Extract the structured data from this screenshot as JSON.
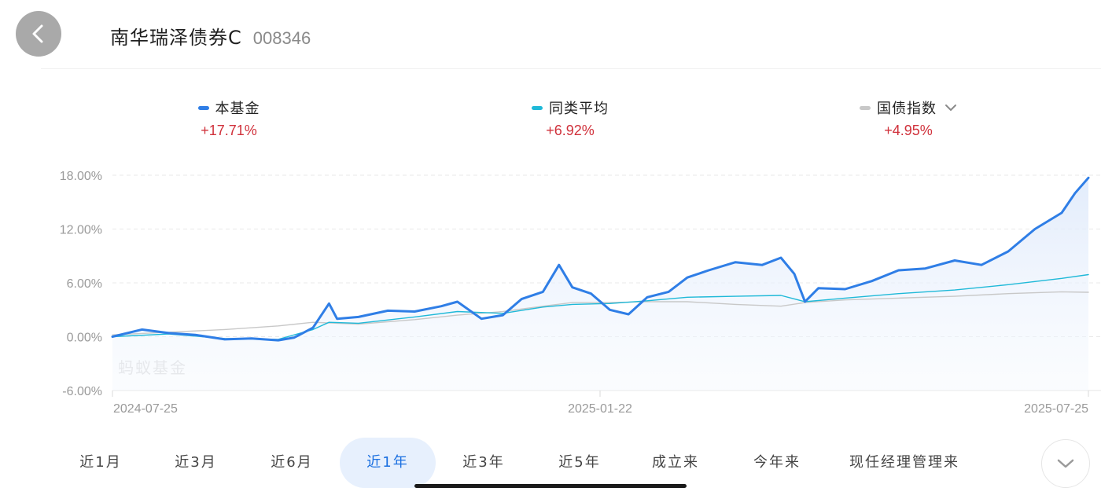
{
  "header": {
    "fund_name": "南华瑞泽债券C",
    "fund_code": "008346"
  },
  "legend": [
    {
      "label": "本基金",
      "value": "+17.71%",
      "color": "#2f7ee6"
    },
    {
      "label": "同类平均",
      "value": "+6.92%",
      "color": "#1fb9d8"
    },
    {
      "label": "国债指数",
      "value": "+4.95%",
      "color": "#c8c8c8"
    }
  ],
  "watermark": "蚂蚁基金",
  "chart_data": {
    "type": "line",
    "title": "",
    "xlabel": "",
    "ylabel": "",
    "ylim": [
      -6,
      18
    ],
    "y_ticks": [
      "18.00%",
      "12.00%",
      "6.00%",
      "0.00%",
      "-6.00%"
    ],
    "x_tick_labels": [
      "2024-07-25",
      "2025-01-22",
      "2025-07-25"
    ],
    "x_range": [
      "2024-07-25",
      "2025-07-25"
    ],
    "grid": true,
    "legend_position": "top",
    "series": [
      {
        "name": "本基金",
        "color": "#2f7ee6",
        "points": [
          [
            "2024-07-25",
            0.0
          ],
          [
            "2024-08-05",
            0.8
          ],
          [
            "2024-08-15",
            0.4
          ],
          [
            "2024-08-25",
            0.2
          ],
          [
            "2024-09-05",
            -0.3
          ],
          [
            "2024-09-15",
            -0.2
          ],
          [
            "2024-09-25",
            -0.4
          ],
          [
            "2024-10-01",
            -0.1
          ],
          [
            "2024-10-08",
            1.0
          ],
          [
            "2024-10-14",
            3.7
          ],
          [
            "2024-10-17",
            2.0
          ],
          [
            "2024-10-25",
            2.2
          ],
          [
            "2024-11-05",
            2.9
          ],
          [
            "2024-11-15",
            2.8
          ],
          [
            "2024-11-25",
            3.4
          ],
          [
            "2024-12-01",
            3.9
          ],
          [
            "2024-12-10",
            2.0
          ],
          [
            "2024-12-18",
            2.4
          ],
          [
            "2024-12-25",
            4.2
          ],
          [
            "2025-01-02",
            5.0
          ],
          [
            "2025-01-08",
            8.0
          ],
          [
            "2025-01-13",
            5.5
          ],
          [
            "2025-01-20",
            4.8
          ],
          [
            "2025-01-27",
            3.0
          ],
          [
            "2025-02-03",
            2.5
          ],
          [
            "2025-02-10",
            4.4
          ],
          [
            "2025-02-18",
            5.0
          ],
          [
            "2025-02-25",
            6.6
          ],
          [
            "2025-03-05",
            7.4
          ],
          [
            "2025-03-15",
            8.3
          ],
          [
            "2025-03-25",
            8.0
          ],
          [
            "2025-04-01",
            8.8
          ],
          [
            "2025-04-06",
            7.0
          ],
          [
            "2025-04-10",
            3.9
          ],
          [
            "2025-04-15",
            5.4
          ],
          [
            "2025-04-25",
            5.3
          ],
          [
            "2025-05-05",
            6.2
          ],
          [
            "2025-05-15",
            7.4
          ],
          [
            "2025-05-25",
            7.6
          ],
          [
            "2025-06-05",
            8.5
          ],
          [
            "2025-06-15",
            8.0
          ],
          [
            "2025-06-25",
            9.5
          ],
          [
            "2025-07-05",
            12.0
          ],
          [
            "2025-07-15",
            13.8
          ],
          [
            "2025-07-20",
            16.0
          ],
          [
            "2025-07-25",
            17.71
          ]
        ]
      },
      {
        "name": "同类平均",
        "color": "#1fb9d8",
        "points": [
          [
            "2024-07-25",
            0.0
          ],
          [
            "2024-08-15",
            0.3
          ],
          [
            "2024-09-05",
            -0.2
          ],
          [
            "2024-09-25",
            -0.3
          ],
          [
            "2024-10-08",
            0.8
          ],
          [
            "2024-10-14",
            1.6
          ],
          [
            "2024-10-25",
            1.5
          ],
          [
            "2024-11-15",
            2.2
          ],
          [
            "2024-12-01",
            2.8
          ],
          [
            "2024-12-18",
            2.6
          ],
          [
            "2025-01-02",
            3.3
          ],
          [
            "2025-01-13",
            3.6
          ],
          [
            "2025-01-27",
            3.7
          ],
          [
            "2025-02-10",
            4.0
          ],
          [
            "2025-02-25",
            4.4
          ],
          [
            "2025-03-15",
            4.5
          ],
          [
            "2025-04-01",
            4.6
          ],
          [
            "2025-04-10",
            3.9
          ],
          [
            "2025-04-25",
            4.3
          ],
          [
            "2025-05-15",
            4.8
          ],
          [
            "2025-06-05",
            5.2
          ],
          [
            "2025-06-25",
            5.8
          ],
          [
            "2025-07-15",
            6.5
          ],
          [
            "2025-07-25",
            6.92
          ]
        ]
      },
      {
        "name": "国债指数",
        "color": "#c8c8c8",
        "points": [
          [
            "2024-07-25",
            0.2
          ],
          [
            "2024-08-15",
            0.5
          ],
          [
            "2024-09-05",
            0.8
          ],
          [
            "2024-09-25",
            1.2
          ],
          [
            "2024-10-08",
            1.6
          ],
          [
            "2024-10-25",
            1.4
          ],
          [
            "2024-11-15",
            1.9
          ],
          [
            "2024-12-01",
            2.4
          ],
          [
            "2024-12-18",
            2.8
          ],
          [
            "2025-01-02",
            3.4
          ],
          [
            "2025-01-13",
            3.8
          ],
          [
            "2025-01-27",
            3.8
          ],
          [
            "2025-02-10",
            3.9
          ],
          [
            "2025-02-25",
            3.9
          ],
          [
            "2025-03-15",
            3.6
          ],
          [
            "2025-04-01",
            3.4
          ],
          [
            "2025-04-10",
            3.8
          ],
          [
            "2025-04-25",
            4.1
          ],
          [
            "2025-05-15",
            4.3
          ],
          [
            "2025-06-05",
            4.5
          ],
          [
            "2025-06-25",
            4.8
          ],
          [
            "2025-07-15",
            5.0
          ],
          [
            "2025-07-25",
            4.95
          ]
        ]
      }
    ]
  },
  "tabs": [
    {
      "label": "近1月",
      "active": false
    },
    {
      "label": "近3月",
      "active": false
    },
    {
      "label": "近6月",
      "active": false
    },
    {
      "label": "近1年",
      "active": true
    },
    {
      "label": "近3年",
      "active": false
    },
    {
      "label": "近5年",
      "active": false
    },
    {
      "label": "成立来",
      "active": false
    },
    {
      "label": "今年来",
      "active": false
    },
    {
      "label": "现任经理管理来",
      "active": false
    }
  ],
  "icons": {
    "back": "chevron-left-icon",
    "legend_dropdown": "chevron-down-icon",
    "expand": "chevron-down-icon"
  }
}
